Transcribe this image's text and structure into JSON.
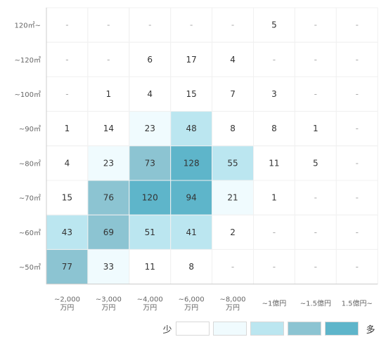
{
  "chart_data": {
    "type": "heatmap",
    "rows": [
      "120㎡~",
      "~120㎡",
      "~100㎡",
      "~90㎡",
      "~80㎡",
      "~70㎡",
      "~60㎡",
      "~50㎡"
    ],
    "columns": [
      [
        "~2,000",
        "万円"
      ],
      [
        "~3,000",
        "万円"
      ],
      [
        "~4,000",
        "万円"
      ],
      [
        "~6,000",
        "万円"
      ],
      [
        "~8,000",
        "万円"
      ],
      [
        "~1億円"
      ],
      [
        "~1.5億円"
      ],
      [
        "1.5億円~"
      ]
    ],
    "values": [
      [
        "-",
        "-",
        "-",
        "-",
        "-",
        "5",
        "-",
        "-"
      ],
      [
        "-",
        "-",
        "6",
        "17",
        "4",
        "-",
        "-",
        "-"
      ],
      [
        "-",
        "1",
        "4",
        "15",
        "7",
        "3",
        "-",
        "-"
      ],
      [
        "1",
        "14",
        "23",
        "48",
        "8",
        "8",
        "1",
        "-"
      ],
      [
        "4",
        "23",
        "73",
        "128",
        "55",
        "11",
        "5",
        "-"
      ],
      [
        "15",
        "76",
        "120",
        "94",
        "21",
        "1",
        "-",
        "-"
      ],
      [
        "43",
        "69",
        "51",
        "41",
        "2",
        "-",
        "-",
        "-"
      ],
      [
        "77",
        "33",
        "11",
        "8",
        "-",
        "-",
        "-",
        "-"
      ]
    ],
    "color_scale": [
      "#ffffff",
      "#f0fbfe",
      "#bbe6f0",
      "#8cc4d2",
      "#5eb5ca"
    ],
    "thresholds": [
      0,
      20,
      40,
      60,
      90
    ]
  },
  "legend": {
    "low_label": "少",
    "high_label": "多"
  }
}
